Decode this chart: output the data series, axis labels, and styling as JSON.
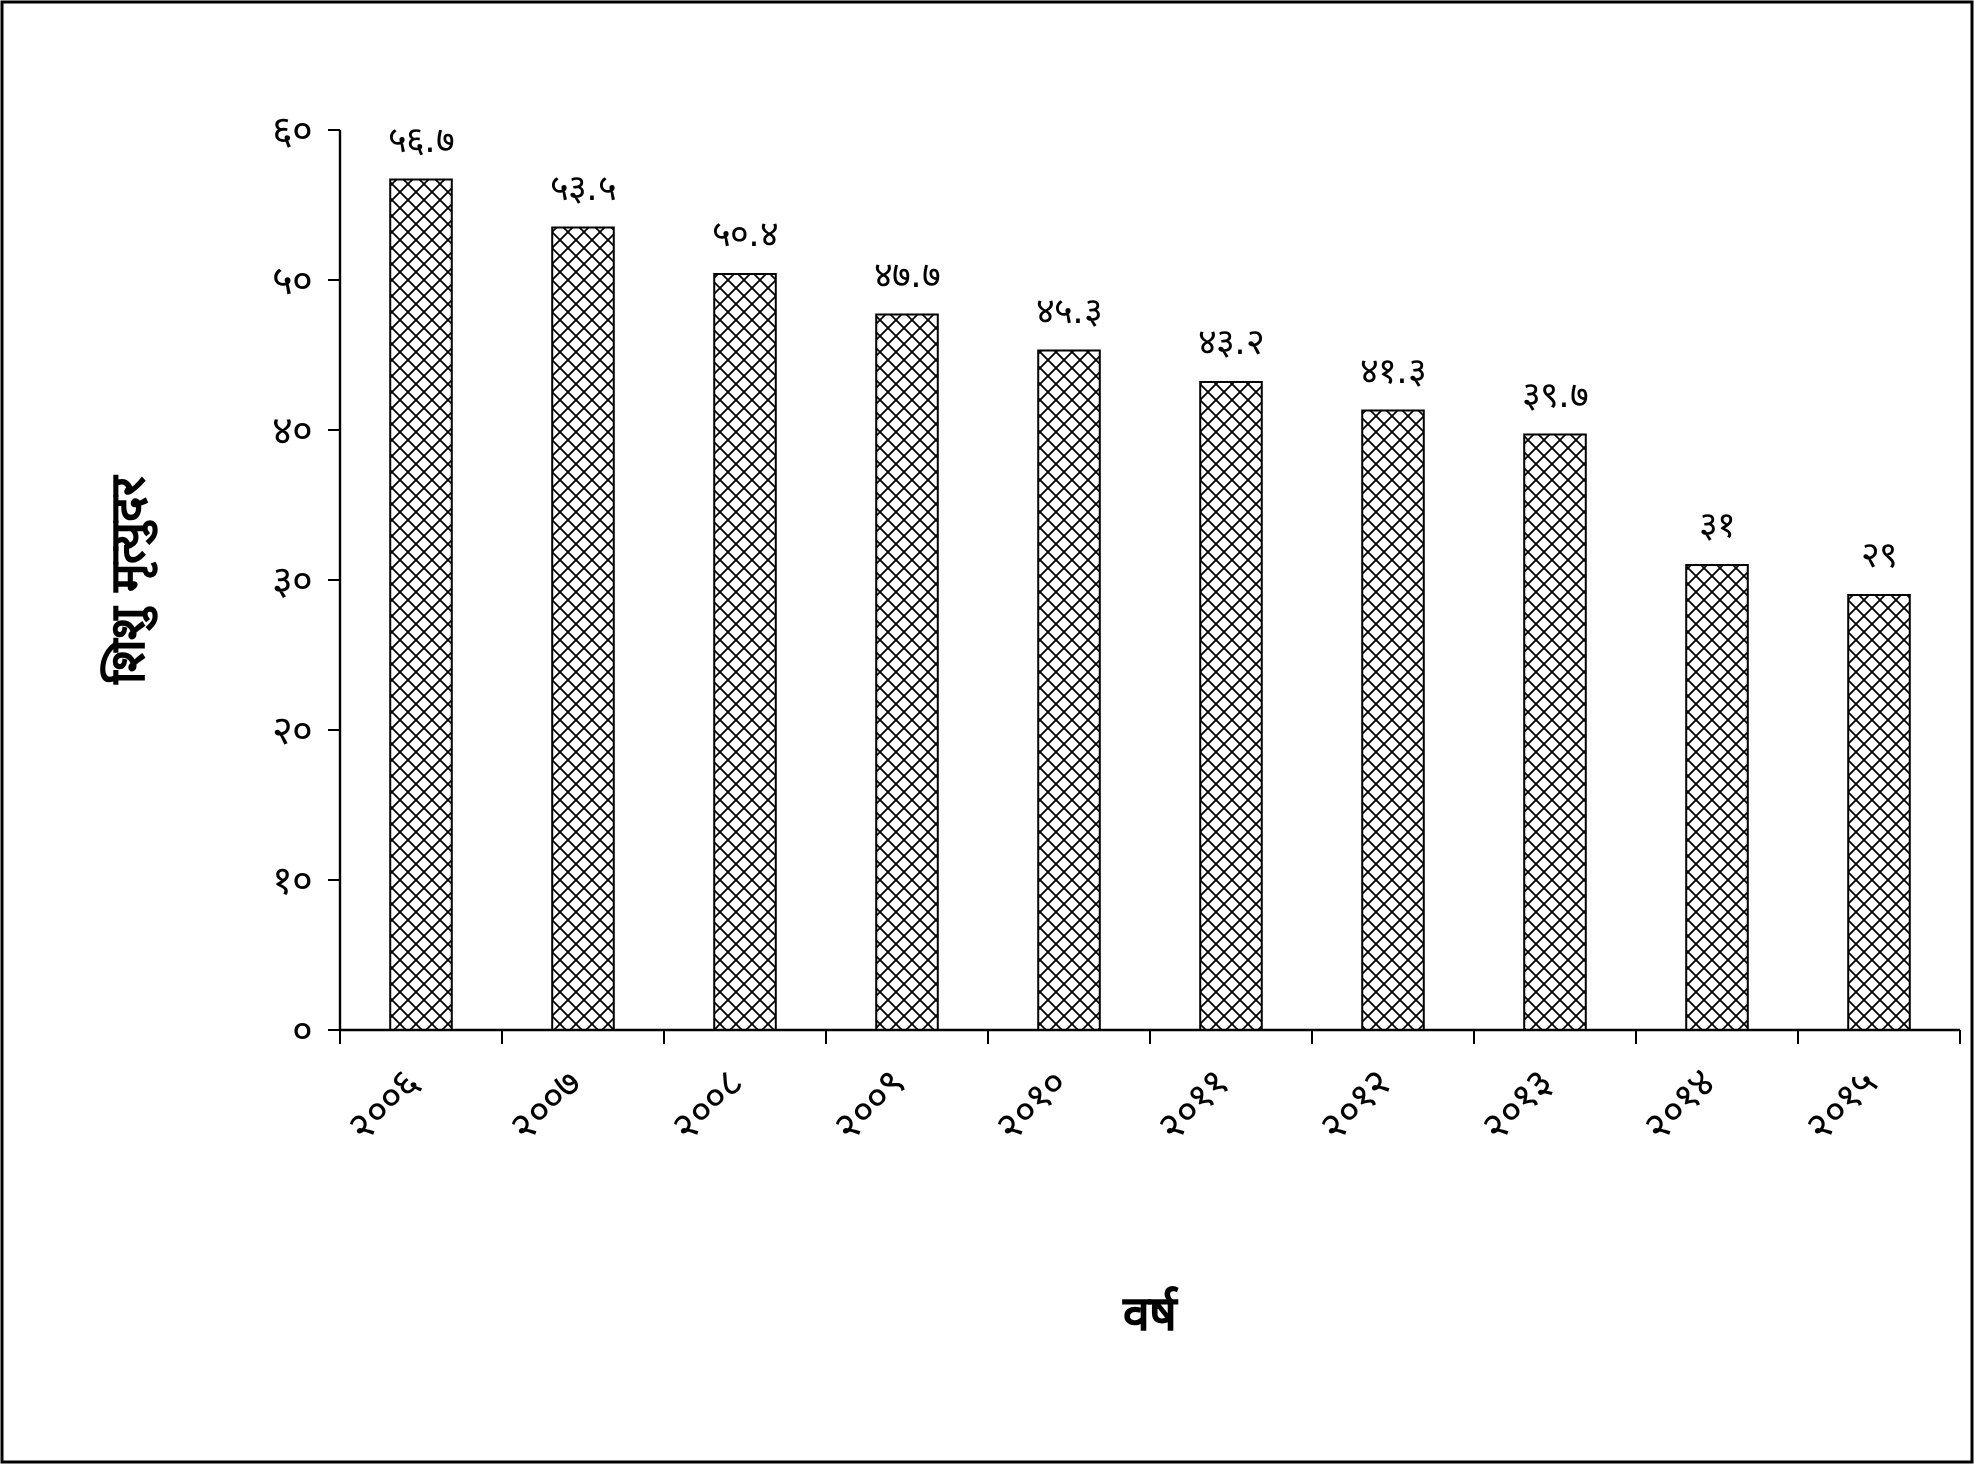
{
  "chart_data": {
    "type": "bar",
    "xlabel": "वर्ष",
    "ylabel": "शिशु मृत्युदर",
    "categories": [
      "२००६",
      "२००७",
      "२००८",
      "२००९",
      "२०१०",
      "२०११",
      "२०१२",
      "२०१३",
      "२०१४",
      "२०१५"
    ],
    "values": [
      56.7,
      53.5,
      50.4,
      47.7,
      45.3,
      43.2,
      41.3,
      39.7,
      31,
      29
    ],
    "value_labels": [
      "५६.७",
      "५३.५",
      "५०.४",
      "४७.७",
      "४५.३",
      "४३.२",
      "४१.३",
      "३९.७",
      "३१",
      "२९"
    ],
    "color": "#000000",
    "ylim": [
      0,
      60
    ],
    "yticks": [
      {
        "value": 0,
        "label": "०"
      },
      {
        "value": 10,
        "label": "१०"
      },
      {
        "value": 20,
        "label": "२०"
      },
      {
        "value": 30,
        "label": "३०"
      },
      {
        "value": 40,
        "label": "४०"
      },
      {
        "value": 50,
        "label": "५०"
      },
      {
        "value": 60,
        "label": "६०"
      }
    ],
    "grid": false
  }
}
